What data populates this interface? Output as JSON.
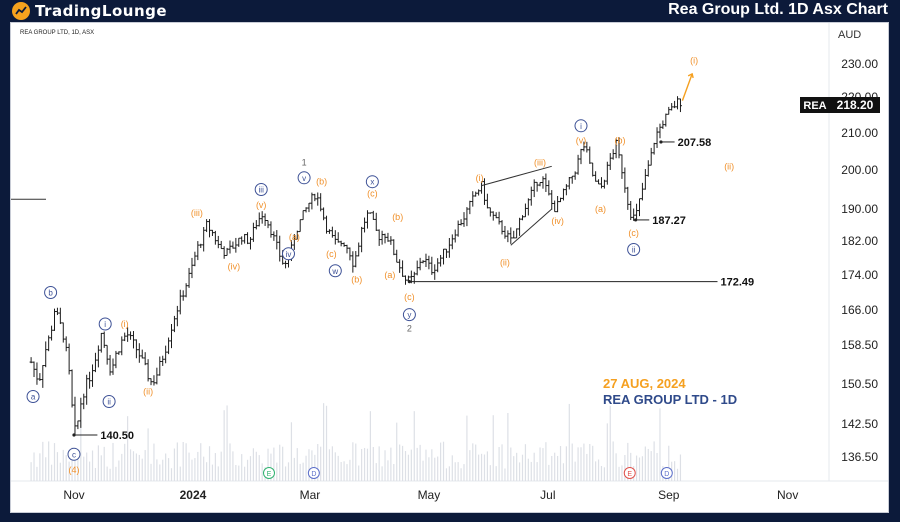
{
  "header": {
    "brand": "TradingLounge",
    "title": "Rea Group Ltd. 1D Asx Chart"
  },
  "chart_data": {
    "type": "ohlc",
    "symbol_line": "REA GROUP LTD, 1D, ASX",
    "currency": "AUD",
    "ticker": "REA",
    "last_price": "218.20",
    "ylim": [
      132,
      236
    ],
    "y_ticks": [
      "230.00",
      "220.00",
      "210.00",
      "200.00",
      "190.00",
      "182.00",
      "174.00",
      "166.00",
      "158.50",
      "150.50",
      "142.50",
      "136.50"
    ],
    "x_ticks": [
      {
        "label": "Nov",
        "day": 0
      },
      {
        "label": "2024",
        "day": 61
      },
      {
        "label": "Mar",
        "day": 121
      },
      {
        "label": "May",
        "day": 182
      },
      {
        "label": "Jul",
        "day": 243
      },
      {
        "label": "Sep",
        "day": 305
      },
      {
        "label": "Nov",
        "day": 366
      }
    ],
    "x_range": [
      -25,
      410
    ],
    "price_path": [
      [
        -22,
        155
      ],
      [
        -18,
        151
      ],
      [
        -15,
        157
      ],
      [
        -12,
        161
      ],
      [
        -10,
        166
      ],
      [
        -8,
        164
      ],
      [
        -5,
        160
      ],
      [
        -2,
        151
      ],
      [
        0,
        140.5
      ],
      [
        2,
        143
      ],
      [
        4,
        148
      ],
      [
        8,
        152
      ],
      [
        11,
        156
      ],
      [
        14,
        161
      ],
      [
        16,
        158
      ],
      [
        19,
        153
      ],
      [
        21,
        156
      ],
      [
        24,
        159
      ],
      [
        27,
        161
      ],
      [
        30,
        159
      ],
      [
        33,
        157
      ],
      [
        36,
        154
      ],
      [
        40,
        150.5
      ],
      [
        43,
        153
      ],
      [
        47,
        158
      ],
      [
        51,
        164
      ],
      [
        56,
        170
      ],
      [
        60,
        175
      ],
      [
        63,
        180
      ],
      [
        66,
        183
      ],
      [
        68,
        186
      ],
      [
        71,
        184
      ],
      [
        74,
        181
      ],
      [
        78,
        179
      ],
      [
        82,
        181
      ],
      [
        86,
        183
      ],
      [
        90,
        182
      ],
      [
        94,
        187
      ],
      [
        97,
        189
      ],
      [
        100,
        186
      ],
      [
        103,
        182
      ],
      [
        106,
        178
      ],
      [
        108,
        176
      ],
      [
        111,
        179
      ],
      [
        113,
        183
      ],
      [
        115,
        186
      ],
      [
        118,
        189
      ],
      [
        121,
        192
      ],
      [
        124,
        194
      ],
      [
        127,
        190
      ],
      [
        129,
        186
      ],
      [
        132,
        183
      ],
      [
        135,
        181
      ],
      [
        138,
        182
      ],
      [
        141,
        180
      ],
      [
        143,
        177
      ],
      [
        145,
        179
      ],
      [
        148,
        186
      ],
      [
        151,
        189
      ],
      [
        153,
        187
      ],
      [
        156,
        183
      ],
      [
        159,
        184
      ],
      [
        162,
        182
      ],
      [
        165,
        178
      ],
      [
        168,
        175
      ],
      [
        170,
        173
      ],
      [
        172,
        172.5
      ],
      [
        175,
        174
      ],
      [
        178,
        178
      ],
      [
        181,
        177
      ],
      [
        183,
        175
      ],
      [
        185,
        176
      ],
      [
        188,
        178
      ],
      [
        192,
        181
      ],
      [
        196,
        185
      ],
      [
        200,
        188
      ],
      [
        203,
        191
      ],
      [
        206,
        194
      ],
      [
        209,
        196
      ],
      [
        212,
        190
      ],
      [
        215,
        188
      ],
      [
        218,
        186
      ],
      [
        221,
        184
      ],
      [
        224,
        182
      ],
      [
        226,
        183
      ],
      [
        229,
        188
      ],
      [
        233,
        192
      ],
      [
        237,
        197
      ],
      [
        240,
        198
      ],
      [
        243,
        194
      ],
      [
        246,
        190
      ],
      [
        248,
        191
      ],
      [
        251,
        194
      ],
      [
        254,
        197
      ],
      [
        257,
        200
      ],
      [
        260,
        205
      ],
      [
        262,
        207
      ],
      [
        264,
        202
      ],
      [
        267,
        197
      ],
      [
        270,
        195
      ],
      [
        272,
        198
      ],
      [
        275,
        203
      ],
      [
        278,
        207
      ],
      [
        281,
        200
      ],
      [
        284,
        192
      ],
      [
        286,
        188
      ],
      [
        288,
        188
      ],
      [
        290,
        192
      ],
      [
        292,
        196
      ],
      [
        294,
        200
      ],
      [
        296,
        204
      ],
      [
        298,
        209
      ],
      [
        301,
        212
      ],
      [
        304,
        215
      ],
      [
        307,
        217
      ],
      [
        310,
        219
      ],
      [
        312,
        218.2
      ]
    ],
    "levels": [
      {
        "value": 140.5,
        "label": "140.50",
        "from_day": 0,
        "to_day": 12
      },
      {
        "value": 172.49,
        "label": "172.49",
        "from_day": 172,
        "to_day": 330
      },
      {
        "value": 187.27,
        "label": "187.27",
        "from_day": 288,
        "to_day": 295
      },
      {
        "value": 207.58,
        "label": "207.58",
        "from_day": 301,
        "to_day": 308
      }
    ],
    "left_stub_value": 192.5,
    "channel_lines": [
      {
        "from": [
          209,
          196
        ],
        "to": [
          245,
          201
        ]
      },
      {
        "from": [
          224,
          181
        ],
        "to": [
          245,
          190
        ]
      }
    ],
    "forecast_arrow": {
      "from": [
        312,
        219
      ],
      "to": [
        317,
        227
      ]
    },
    "annotations": [
      {
        "text": "ⓐ",
        "label": "a",
        "day": -21,
        "price": 148,
        "style": "circle-blue"
      },
      {
        "text": "b",
        "day": -12,
        "price": 170,
        "style": "circle-blue"
      },
      {
        "text": "c",
        "day": 0,
        "price": 137,
        "style": "circle-blue"
      },
      {
        "text": "(4)",
        "day": 0,
        "price": 134,
        "style": "orange"
      },
      {
        "text": "i",
        "day": 16,
        "price": 163,
        "style": "circle-blue"
      },
      {
        "text": "ii",
        "day": 18,
        "price": 147,
        "style": "circle-blue"
      },
      {
        "text": "(i)",
        "day": 26,
        "price": 163,
        "style": "orange"
      },
      {
        "text": "(ii)",
        "day": 38,
        "price": 149,
        "style": "orange"
      },
      {
        "text": "(iii)",
        "day": 63,
        "price": 189,
        "style": "orange"
      },
      {
        "text": "(iv)",
        "day": 82,
        "price": 176,
        "style": "orange"
      },
      {
        "text": "iii",
        "day": 96,
        "price": 195,
        "style": "circle-blue"
      },
      {
        "text": "(v)",
        "day": 96,
        "price": 191,
        "style": "orange"
      },
      {
        "text": "(a)",
        "day": 113,
        "price": 183,
        "style": "orange"
      },
      {
        "text": "iv",
        "day": 110,
        "price": 179,
        "style": "circle-blue"
      },
      {
        "text": "1",
        "day": 118,
        "price": 202,
        "style": "gray"
      },
      {
        "text": "v",
        "day": 118,
        "price": 198,
        "style": "circle-blue"
      },
      {
        "text": "(b)",
        "day": 127,
        "price": 197,
        "style": "orange"
      },
      {
        "text": "(c)",
        "day": 132,
        "price": 179,
        "style": "orange"
      },
      {
        "text": "w",
        "day": 134,
        "price": 175,
        "style": "circle-blue"
      },
      {
        "text": "(b)",
        "day": 145,
        "price": 173,
        "style": "orange"
      },
      {
        "text": "x",
        "day": 153,
        "price": 197,
        "style": "circle-blue"
      },
      {
        "text": "(c)",
        "day": 153,
        "price": 194,
        "style": "orange"
      },
      {
        "text": "(a)",
        "day": 162,
        "price": 174,
        "style": "orange"
      },
      {
        "text": "(b)",
        "day": 166,
        "price": 188,
        "style": "orange"
      },
      {
        "text": "(c)",
        "day": 172,
        "price": 169,
        "style": "orange"
      },
      {
        "text": "y",
        "day": 172,
        "price": 165,
        "style": "circle-blue"
      },
      {
        "text": "2",
        "day": 172,
        "price": 162,
        "style": "gray"
      },
      {
        "text": "(i)",
        "day": 208,
        "price": 198,
        "style": "orange"
      },
      {
        "text": "(ii)",
        "day": 221,
        "price": 177,
        "style": "orange"
      },
      {
        "text": "(iii)",
        "day": 239,
        "price": 202,
        "style": "orange"
      },
      {
        "text": "(iv)",
        "day": 248,
        "price": 187,
        "style": "orange"
      },
      {
        "text": "i",
        "day": 260,
        "price": 212,
        "style": "circle-blue"
      },
      {
        "text": "(v)",
        "day": 260,
        "price": 208,
        "style": "orange"
      },
      {
        "text": "(a)",
        "day": 270,
        "price": 190,
        "style": "orange"
      },
      {
        "text": "(b)",
        "day": 280,
        "price": 208,
        "style": "orange"
      },
      {
        "text": "(c)",
        "day": 287,
        "price": 184,
        "style": "orange"
      },
      {
        "text": "ii",
        "day": 287,
        "price": 180,
        "style": "circle-blue"
      },
      {
        "text": "(i)",
        "day": 318,
        "price": 231,
        "style": "orange"
      },
      {
        "text": "(ii)",
        "day": 336,
        "price": 201,
        "style": "orange"
      }
    ],
    "event_markers": [
      {
        "text": "E",
        "day": 100,
        "color": "#2fb26f"
      },
      {
        "text": "D",
        "day": 123,
        "color": "#5b6ec9"
      },
      {
        "text": "E",
        "day": 285,
        "color": "#e0504a"
      },
      {
        "text": "D",
        "day": 304,
        "color": "#5b6ec9"
      }
    ],
    "date_note": "27 AUG, 2024",
    "name_note": "REA GROUP LTD - 1D"
  }
}
